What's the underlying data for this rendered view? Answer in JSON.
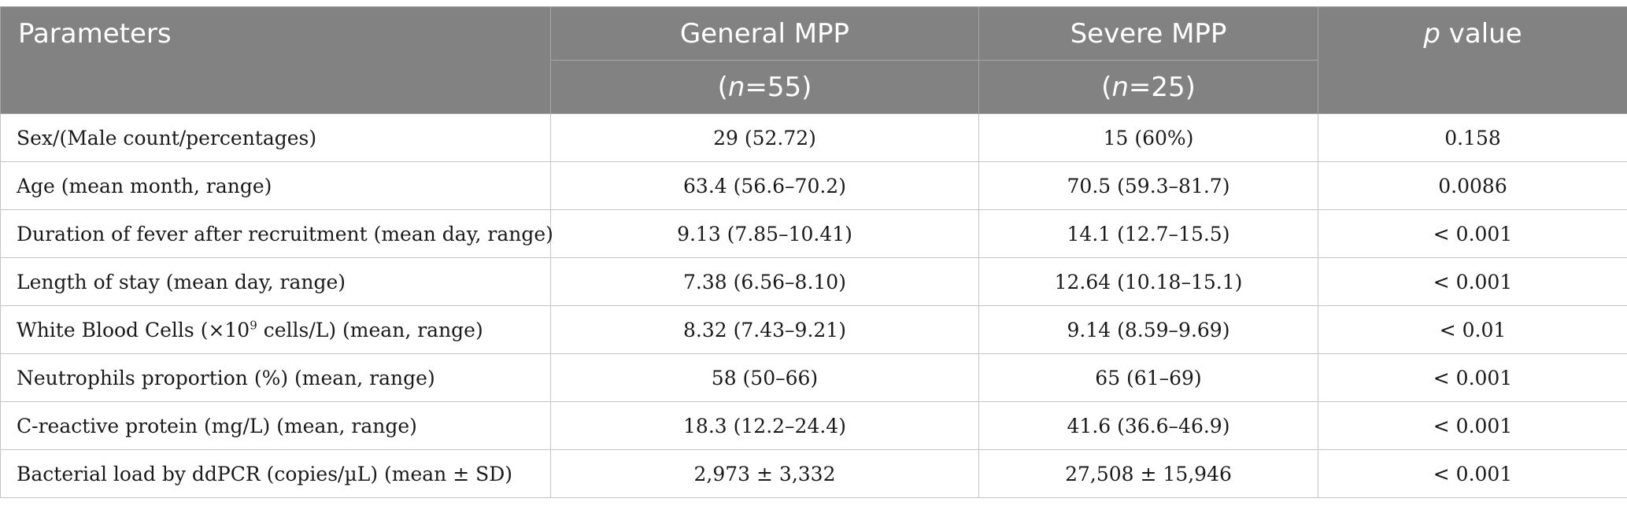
{
  "headers": {
    "parameters": "Parameters",
    "general": "General MPP",
    "general_n_label": "n",
    "general_n_value": "=55",
    "severe": "Severe MPP",
    "severe_n_label": "n",
    "severe_n_value": "=25",
    "pvalue_italic": "p",
    "pvalue_rest": " value"
  },
  "rows": [
    {
      "param": "Sex/(Male count/percentages)",
      "general": "29 (52.72)",
      "severe": "15 (60%)",
      "p": "0.158"
    },
    {
      "param": "Age (mean month, range)",
      "general": "63.4 (56.6–70.2)",
      "severe": "70.5 (59.3–81.7)",
      "p": "0.0086"
    },
    {
      "param": "Duration of fever after recruitment (mean day, range)",
      "general": "9.13 (7.85–10.41)",
      "severe": "14.1 (12.7–15.5)",
      "p": "< 0.001"
    },
    {
      "param": "Length of stay (mean day, range)",
      "general": "7.38 (6.56–8.10)",
      "severe": "12.64 (10.18–15.1)",
      "p": "< 0.001"
    },
    {
      "param_pre": "White Blood Cells (×10",
      "param_sup": "9",
      "param_post": " cells/L) (mean, range)",
      "general": "8.32 (7.43–9.21)",
      "severe": "9.14 (8.59–9.69)",
      "p": "< 0.01"
    },
    {
      "param": "Neutrophils proportion (%) (mean, range)",
      "general": "58 (50–66)",
      "severe": "65 (61–69)",
      "p": "< 0.001"
    },
    {
      "param": "C-reactive protein (mg/L) (mean, range)",
      "general": "18.3 (12.2–24.4)",
      "severe": "41.6 (36.6–46.9)",
      "p": "< 0.001"
    },
    {
      "param": "Bacterial load by ddPCR (copies/µL) (mean ± SD)",
      "general": "2,973 ± 3,332",
      "severe": "27,508 ± 15,946",
      "p": "< 0.001"
    }
  ]
}
